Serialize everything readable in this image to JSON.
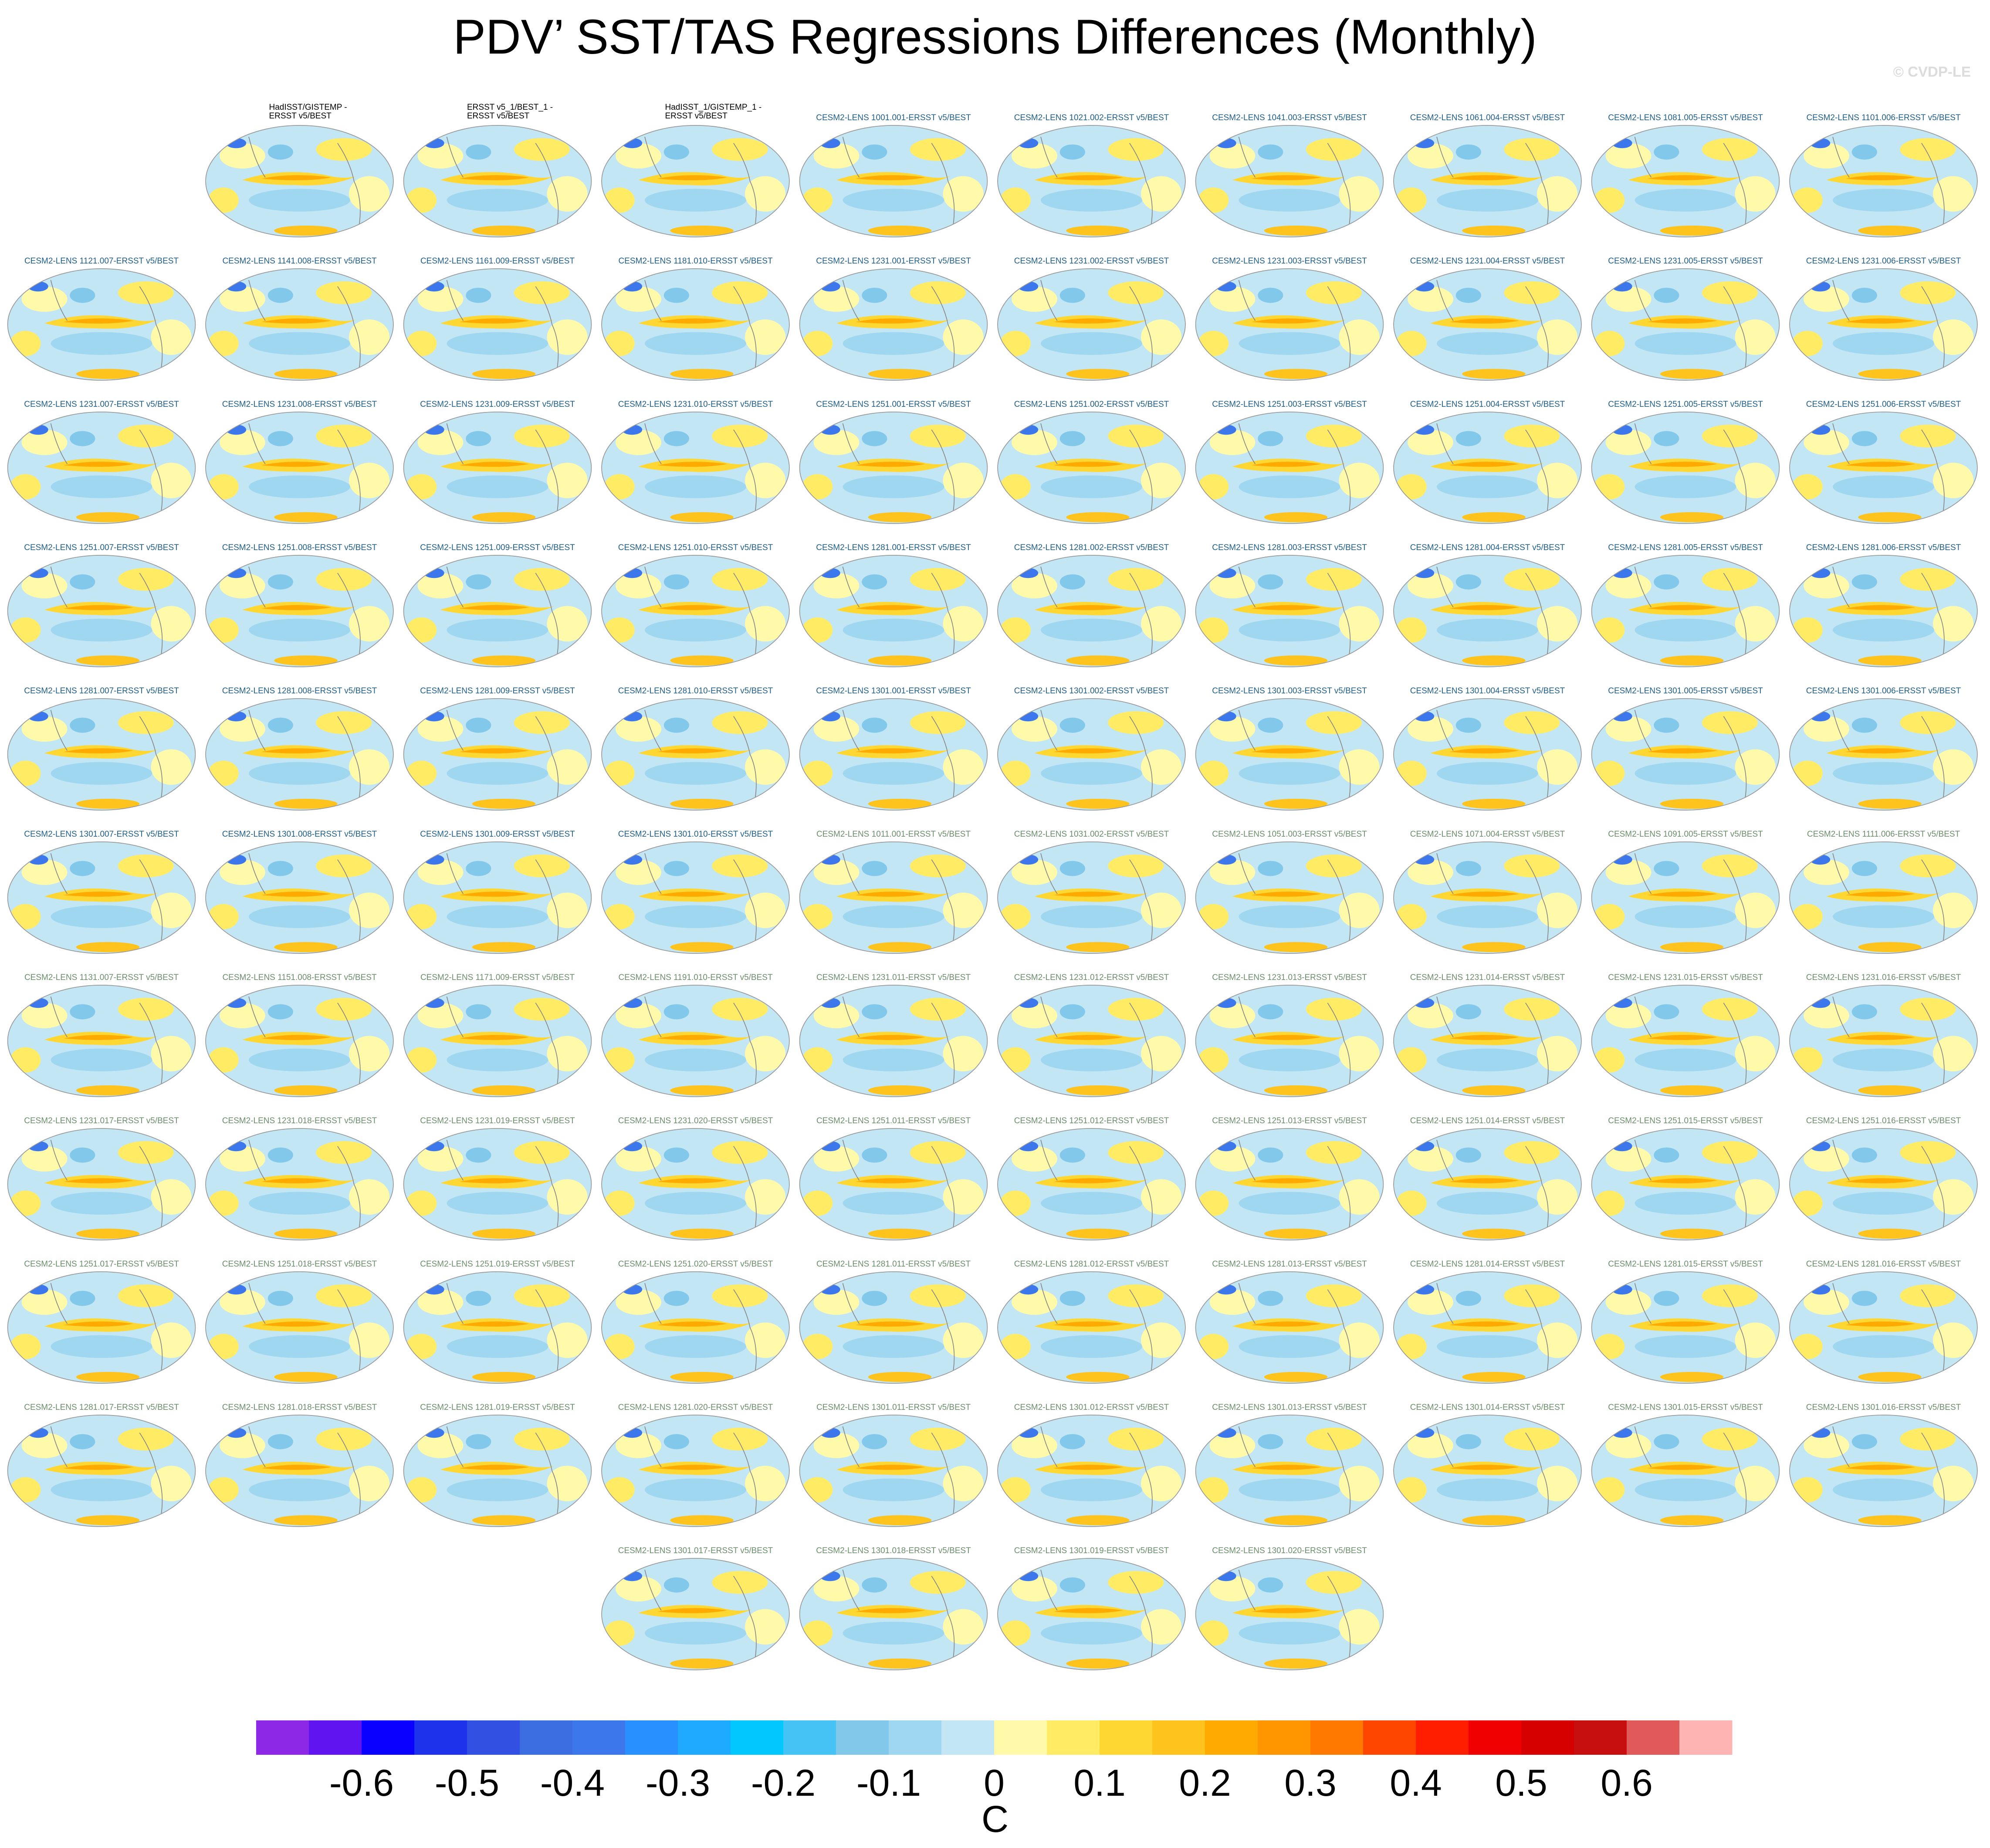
{
  "title": "PDV’ SST/TAS Regressions Differences (Monthly)",
  "watermark": "© CVDP-LE",
  "panels": [
    {
      "label": "HadISST/GISTEMP -\nERSST v5/BEST",
      "color": "#000000"
    },
    {
      "label": "ERSST v5_1/BEST_1 -\nERSST v5/BEST",
      "color": "#000000"
    },
    {
      "label": "HadISST_1/GISTEMP_1 -\nERSST v5/BEST",
      "color": "#000000"
    },
    {
      "label": "CESM2-LENS 1001.001-ERSST v5/BEST",
      "color": "#1f5f8b"
    },
    {
      "label": "CESM2-LENS 1021.002-ERSST v5/BEST",
      "color": "#1f5f8b"
    },
    {
      "label": "CESM2-LENS 1041.003-ERSST v5/BEST",
      "color": "#1f5f8b"
    },
    {
      "label": "CESM2-LENS 1061.004-ERSST v5/BEST",
      "color": "#1f5f8b"
    },
    {
      "label": "CESM2-LENS 1081.005-ERSST v5/BEST",
      "color": "#1f5f8b"
    },
    {
      "label": "CESM2-LENS 1101.006-ERSST v5/BEST",
      "color": "#1f5f8b"
    },
    {
      "label": "CESM2-LENS 1121.007-ERSST v5/BEST",
      "color": "#1f5f8b"
    },
    {
      "label": "CESM2-LENS 1141.008-ERSST v5/BEST",
      "color": "#1f5f8b"
    },
    {
      "label": "CESM2-LENS 1161.009-ERSST v5/BEST",
      "color": "#1f5f8b"
    },
    {
      "label": "CESM2-LENS 1181.010-ERSST v5/BEST",
      "color": "#1f5f8b"
    },
    {
      "label": "CESM2-LENS 1231.001-ERSST v5/BEST",
      "color": "#1f5f8b"
    },
    {
      "label": "CESM2-LENS 1231.002-ERSST v5/BEST",
      "color": "#1f5f8b"
    },
    {
      "label": "CESM2-LENS 1231.003-ERSST v5/BEST",
      "color": "#1f5f8b"
    },
    {
      "label": "CESM2-LENS 1231.004-ERSST v5/BEST",
      "color": "#1f5f8b"
    },
    {
      "label": "CESM2-LENS 1231.005-ERSST v5/BEST",
      "color": "#1f5f8b"
    },
    {
      "label": "CESM2-LENS 1231.006-ERSST v5/BEST",
      "color": "#1f5f8b"
    },
    {
      "label": "CESM2-LENS 1231.007-ERSST v5/BEST",
      "color": "#1f5f8b"
    },
    {
      "label": "CESM2-LENS 1231.008-ERSST v5/BEST",
      "color": "#1f5f8b"
    },
    {
      "label": "CESM2-LENS 1231.009-ERSST v5/BEST",
      "color": "#1f5f8b"
    },
    {
      "label": "CESM2-LENS 1231.010-ERSST v5/BEST",
      "color": "#1f5f8b"
    },
    {
      "label": "CESM2-LENS 1251.001-ERSST v5/BEST",
      "color": "#1f5f8b"
    },
    {
      "label": "CESM2-LENS 1251.002-ERSST v5/BEST",
      "color": "#1f5f8b"
    },
    {
      "label": "CESM2-LENS 1251.003-ERSST v5/BEST",
      "color": "#1f5f8b"
    },
    {
      "label": "CESM2-LENS 1251.004-ERSST v5/BEST",
      "color": "#1f5f8b"
    },
    {
      "label": "CESM2-LENS 1251.005-ERSST v5/BEST",
      "color": "#1f5f8b"
    },
    {
      "label": "CESM2-LENS 1251.006-ERSST v5/BEST",
      "color": "#1f5f8b"
    },
    {
      "label": "CESM2-LENS 1251.007-ERSST v5/BEST",
      "color": "#1f5f8b"
    },
    {
      "label": "CESM2-LENS 1251.008-ERSST v5/BEST",
      "color": "#1f5f8b"
    },
    {
      "label": "CESM2-LENS 1251.009-ERSST v5/BEST",
      "color": "#1f5f8b"
    },
    {
      "label": "CESM2-LENS 1251.010-ERSST v5/BEST",
      "color": "#1f5f8b"
    },
    {
      "label": "CESM2-LENS 1281.001-ERSST v5/BEST",
      "color": "#1f5f8b"
    },
    {
      "label": "CESM2-LENS 1281.002-ERSST v5/BEST",
      "color": "#1f5f8b"
    },
    {
      "label": "CESM2-LENS 1281.003-ERSST v5/BEST",
      "color": "#1f5f8b"
    },
    {
      "label": "CESM2-LENS 1281.004-ERSST v5/BEST",
      "color": "#1f5f8b"
    },
    {
      "label": "CESM2-LENS 1281.005-ERSST v5/BEST",
      "color": "#1f5f8b"
    },
    {
      "label": "CESM2-LENS 1281.006-ERSST v5/BEST",
      "color": "#1f5f8b"
    },
    {
      "label": "CESM2-LENS 1281.007-ERSST v5/BEST",
      "color": "#1f5f8b"
    },
    {
      "label": "CESM2-LENS 1281.008-ERSST v5/BEST",
      "color": "#1f5f8b"
    },
    {
      "label": "CESM2-LENS 1281.009-ERSST v5/BEST",
      "color": "#1f5f8b"
    },
    {
      "label": "CESM2-LENS 1281.010-ERSST v5/BEST",
      "color": "#1f5f8b"
    },
    {
      "label": "CESM2-LENS 1301.001-ERSST v5/BEST",
      "color": "#1f5f8b"
    },
    {
      "label": "CESM2-LENS 1301.002-ERSST v5/BEST",
      "color": "#1f5f8b"
    },
    {
      "label": "CESM2-LENS 1301.003-ERSST v5/BEST",
      "color": "#1f5f8b"
    },
    {
      "label": "CESM2-LENS 1301.004-ERSST v5/BEST",
      "color": "#1f5f8b"
    },
    {
      "label": "CESM2-LENS 1301.005-ERSST v5/BEST",
      "color": "#1f5f8b"
    },
    {
      "label": "CESM2-LENS 1301.006-ERSST v5/BEST",
      "color": "#1f5f8b"
    },
    {
      "label": "CESM2-LENS 1301.007-ERSST v5/BEST",
      "color": "#1f5f8b"
    },
    {
      "label": "CESM2-LENS 1301.008-ERSST v5/BEST",
      "color": "#1f5f8b"
    },
    {
      "label": "CESM2-LENS 1301.009-ERSST v5/BEST",
      "color": "#1f5f8b"
    },
    {
      "label": "CESM2-LENS 1301.010-ERSST v5/BEST",
      "color": "#1f5f8b"
    },
    {
      "label": "CESM2-LENS 1011.001-ERSST v5/BEST",
      "color": "#6b8e6b"
    },
    {
      "label": "CESM2-LENS 1031.002-ERSST v5/BEST",
      "color": "#6b8e6b"
    },
    {
      "label": "CESM2-LENS 1051.003-ERSST v5/BEST",
      "color": "#6b8e6b"
    },
    {
      "label": "CESM2-LENS 1071.004-ERSST v5/BEST",
      "color": "#6b8e6b"
    },
    {
      "label": "CESM2-LENS 1091.005-ERSST v5/BEST",
      "color": "#6b8e6b"
    },
    {
      "label": "CESM2-LENS 1111.006-ERSST v5/BEST",
      "color": "#6b8e6b"
    },
    {
      "label": "CESM2-LENS 1131.007-ERSST v5/BEST",
      "color": "#6b8e6b"
    },
    {
      "label": "CESM2-LENS 1151.008-ERSST v5/BEST",
      "color": "#6b8e6b"
    },
    {
      "label": "CESM2-LENS 1171.009-ERSST v5/BEST",
      "color": "#6b8e6b"
    },
    {
      "label": "CESM2-LENS 1191.010-ERSST v5/BEST",
      "color": "#6b8e6b"
    },
    {
      "label": "CESM2-LENS 1231.011-ERSST v5/BEST",
      "color": "#6b8e6b"
    },
    {
      "label": "CESM2-LENS 1231.012-ERSST v5/BEST",
      "color": "#6b8e6b"
    },
    {
      "label": "CESM2-LENS 1231.013-ERSST v5/BEST",
      "color": "#6b8e6b"
    },
    {
      "label": "CESM2-LENS 1231.014-ERSST v5/BEST",
      "color": "#6b8e6b"
    },
    {
      "label": "CESM2-LENS 1231.015-ERSST v5/BEST",
      "color": "#6b8e6b"
    },
    {
      "label": "CESM2-LENS 1231.016-ERSST v5/BEST",
      "color": "#6b8e6b"
    },
    {
      "label": "CESM2-LENS 1231.017-ERSST v5/BEST",
      "color": "#6b8e6b"
    },
    {
      "label": "CESM2-LENS 1231.018-ERSST v5/BEST",
      "color": "#6b8e6b"
    },
    {
      "label": "CESM2-LENS 1231.019-ERSST v5/BEST",
      "color": "#6b8e6b"
    },
    {
      "label": "CESM2-LENS 1231.020-ERSST v5/BEST",
      "color": "#6b8e6b"
    },
    {
      "label": "CESM2-LENS 1251.011-ERSST v5/BEST",
      "color": "#6b8e6b"
    },
    {
      "label": "CESM2-LENS 1251.012-ERSST v5/BEST",
      "color": "#6b8e6b"
    },
    {
      "label": "CESM2-LENS 1251.013-ERSST v5/BEST",
      "color": "#6b8e6b"
    },
    {
      "label": "CESM2-LENS 1251.014-ERSST v5/BEST",
      "color": "#6b8e6b"
    },
    {
      "label": "CESM2-LENS 1251.015-ERSST v5/BEST",
      "color": "#6b8e6b"
    },
    {
      "label": "CESM2-LENS 1251.016-ERSST v5/BEST",
      "color": "#6b8e6b"
    },
    {
      "label": "CESM2-LENS 1251.017-ERSST v5/BEST",
      "color": "#6b8e6b"
    },
    {
      "label": "CESM2-LENS 1251.018-ERSST v5/BEST",
      "color": "#6b8e6b"
    },
    {
      "label": "CESM2-LENS 1251.019-ERSST v5/BEST",
      "color": "#6b8e6b"
    },
    {
      "label": "CESM2-LENS 1251.020-ERSST v5/BEST",
      "color": "#6b8e6b"
    },
    {
      "label": "CESM2-LENS 1281.011-ERSST v5/BEST",
      "color": "#6b8e6b"
    },
    {
      "label": "CESM2-LENS 1281.012-ERSST v5/BEST",
      "color": "#6b8e6b"
    },
    {
      "label": "CESM2-LENS 1281.013-ERSST v5/BEST",
      "color": "#6b8e6b"
    },
    {
      "label": "CESM2-LENS 1281.014-ERSST v5/BEST",
      "color": "#6b8e6b"
    },
    {
      "label": "CESM2-LENS 1281.015-ERSST v5/BEST",
      "color": "#6b8e6b"
    },
    {
      "label": "CESM2-LENS 1281.016-ERSST v5/BEST",
      "color": "#6b8e6b"
    },
    {
      "label": "CESM2-LENS 1281.017-ERSST v5/BEST",
      "color": "#6b8e6b"
    },
    {
      "label": "CESM2-LENS 1281.018-ERSST v5/BEST",
      "color": "#6b8e6b"
    },
    {
      "label": "CESM2-LENS 1281.019-ERSST v5/BEST",
      "color": "#6b8e6b"
    },
    {
      "label": "CESM2-LENS 1281.020-ERSST v5/BEST",
      "color": "#6b8e6b"
    },
    {
      "label": "CESM2-LENS 1301.011-ERSST v5/BEST",
      "color": "#6b8e6b"
    },
    {
      "label": "CESM2-LENS 1301.012-ERSST v5/BEST",
      "color": "#6b8e6b"
    },
    {
      "label": "CESM2-LENS 1301.013-ERSST v5/BEST",
      "color": "#6b8e6b"
    },
    {
      "label": "CESM2-LENS 1301.014-ERSST v5/BEST",
      "color": "#6b8e6b"
    },
    {
      "label": "CESM2-LENS 1301.015-ERSST v5/BEST",
      "color": "#6b8e6b"
    },
    {
      "label": "CESM2-LENS 1301.016-ERSST v5/BEST",
      "color": "#6b8e6b"
    },
    {
      "label": "CESM2-LENS 1301.017-ERSST v5/BEST",
      "color": "#6b8e6b"
    },
    {
      "label": "CESM2-LENS 1301.018-ERSST v5/BEST",
      "color": "#6b8e6b"
    },
    {
      "label": "CESM2-LENS 1301.019-ERSST v5/BEST",
      "color": "#6b8e6b"
    },
    {
      "label": "CESM2-LENS 1301.020-ERSST v5/BEST",
      "color": "#6b8e6b"
    }
  ],
  "colorbar": {
    "colors": [
      "#8c28e6",
      "#5f14f0",
      "#0a00ff",
      "#1e32eb",
      "#3250e1",
      "#3c6ee1",
      "#3c78eb",
      "#2891ff",
      "#1eaaff",
      "#00c8ff",
      "#46c3f5",
      "#82c8eb",
      "#a0d7f0",
      "#c3e6f5",
      "#fffaaa",
      "#ffeb64",
      "#ffd732",
      "#ffc31e",
      "#ffaa00",
      "#ff9600",
      "#ff7800",
      "#ff4600",
      "#ff1e00",
      "#f00000",
      "#d70000",
      "#c80f0f",
      "#e15a5a",
      "#ffb4b4"
    ],
    "limits": [
      -0.7,
      0.7
    ],
    "ticks": [
      -0.6,
      -0.5,
      -0.4,
      -0.3,
      -0.2,
      -0.1,
      0,
      0.1,
      0.2,
      0.3,
      0.4,
      0.5,
      0.6
    ],
    "label": "C"
  }
}
